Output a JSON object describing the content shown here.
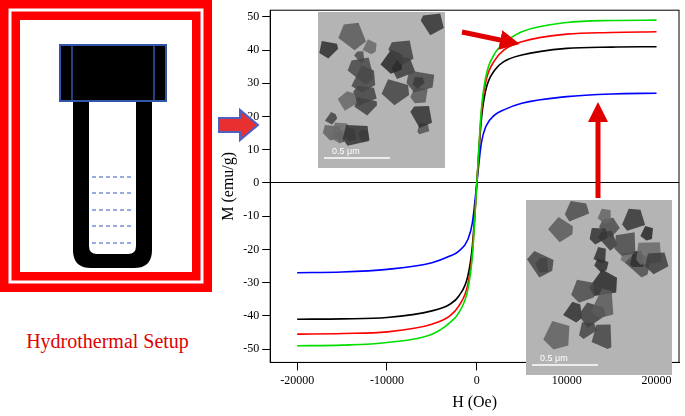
{
  "chart_data": {
    "type": "line",
    "x_label": "H (Oe)",
    "y_label": "M (emu/g)",
    "x": [
      -20000,
      -15000,
      -10000,
      -5000,
      -3000,
      -2000,
      -1000,
      -500,
      0,
      500,
      1000,
      2000,
      3000,
      5000,
      10000,
      15000,
      20000
    ],
    "series": [
      {
        "color": "#00dd00",
        "values": [
          -49,
          -48.8,
          -48,
          -45.5,
          -42,
          -39,
          -32,
          -22,
          0,
          22,
          32,
          39,
          42,
          45.5,
          48.3,
          48.9,
          49
        ]
      },
      {
        "color": "#ff0000",
        "values": [
          -45.5,
          -45.3,
          -44.8,
          -42.5,
          -40,
          -37,
          -30.5,
          -21,
          0,
          21,
          30.5,
          37,
          40,
          42.5,
          44.8,
          45.3,
          45.5
        ]
      },
      {
        "color": "#000000",
        "values": [
          -41,
          -40.9,
          -40.5,
          -38.5,
          -36.5,
          -34,
          -28,
          -19,
          0,
          19,
          28,
          34,
          36.5,
          38.5,
          40.5,
          40.9,
          41
        ]
      },
      {
        "color": "#0000ff",
        "values": [
          -27,
          -26.8,
          -26,
          -24,
          -22,
          -20.5,
          -17,
          -12,
          0,
          12,
          17,
          20.5,
          22,
          24,
          26,
          26.8,
          27
        ]
      }
    ],
    "marker": "none",
    "xlim": [
      -23000,
      22500
    ],
    "ylim": [
      -54,
      52
    ],
    "xticks": [
      -20000,
      -10000,
      0,
      10000,
      20000
    ],
    "yticks": [
      -50,
      -40,
      -30,
      -20,
      -10,
      0,
      10,
      20,
      30,
      40,
      50
    ],
    "annotations": [
      "Hydrothermal Setup",
      "0.5 μm",
      "0.5 μm"
    ]
  }
}
